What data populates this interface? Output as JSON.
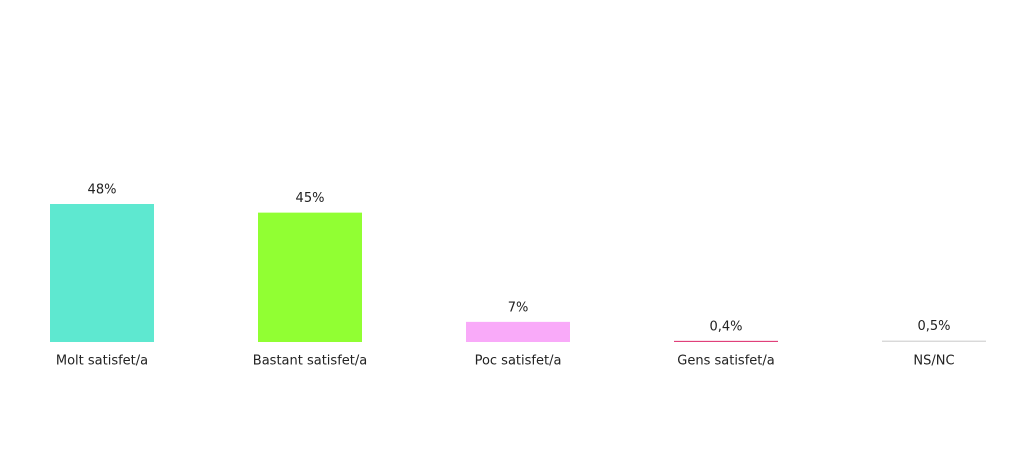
{
  "chart_data": {
    "type": "bar",
    "categories": [
      "Molt satisfet/a",
      "Bastant satisfet/a",
      "Poc satisfet/a",
      "Gens satisfet/a",
      "NS/NC"
    ],
    "values": [
      48,
      45,
      7,
      0.4,
      0.5
    ],
    "value_labels": [
      "48%",
      "45%",
      "7%",
      "0,4%",
      "0,5%"
    ],
    "colors": [
      "#5ee8d0",
      "#91ff33",
      "#f9aaf9",
      "#e0407a",
      "#d9d9d9"
    ]
  }
}
